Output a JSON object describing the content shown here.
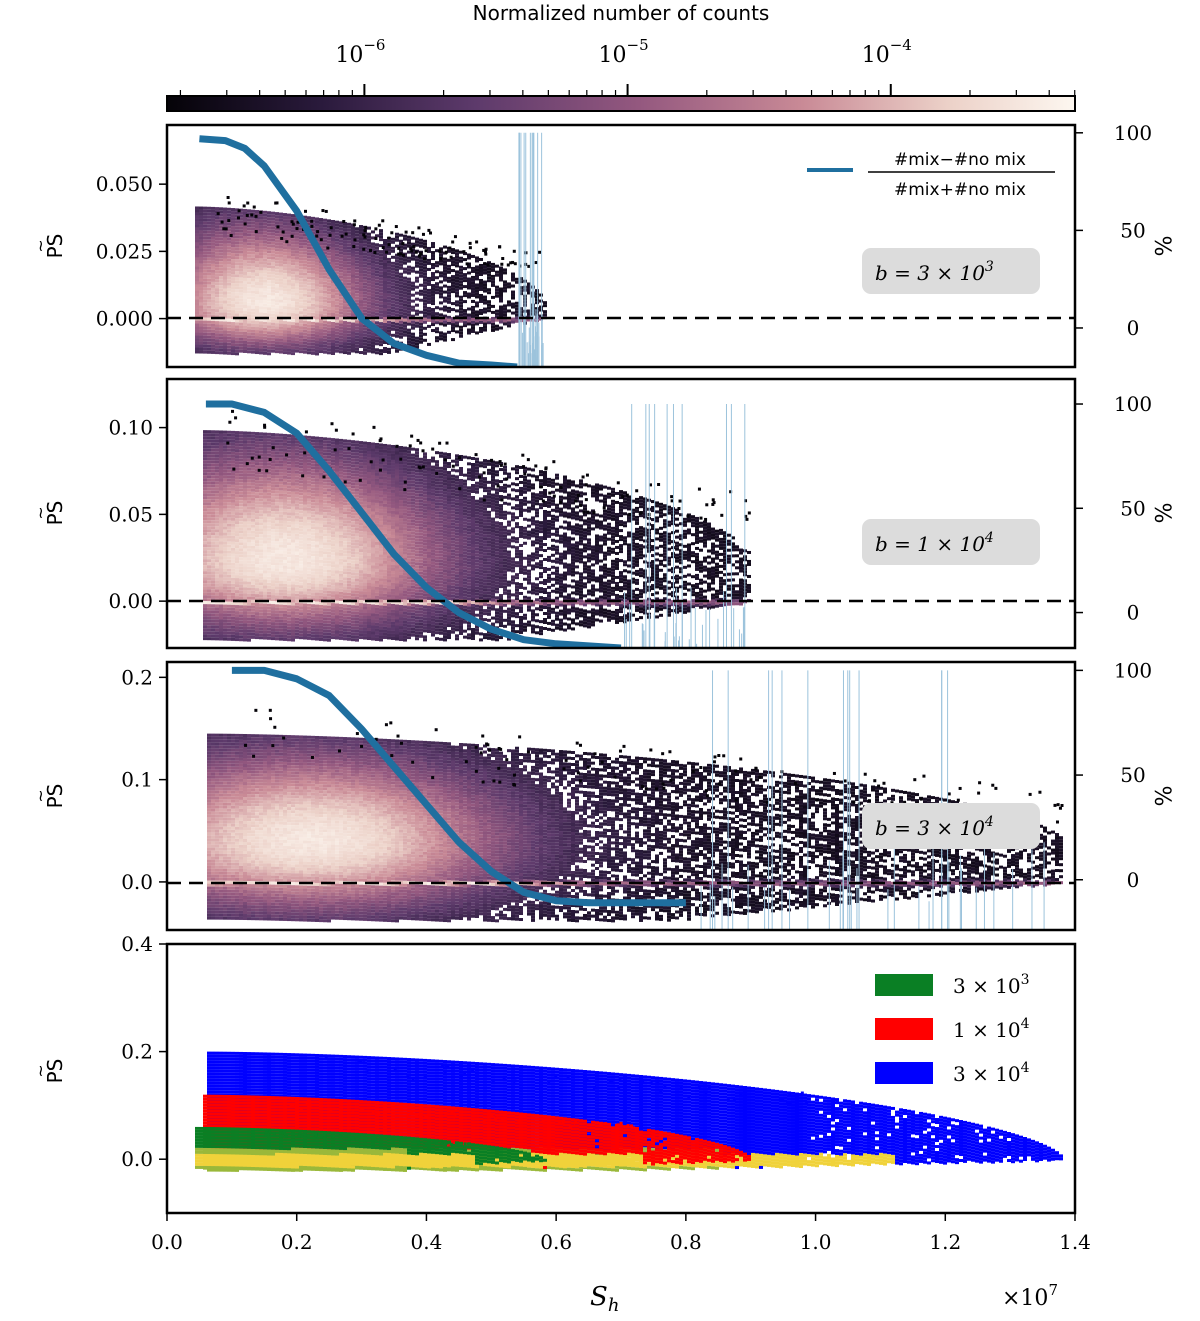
{
  "colorbar": {
    "label": "Normalized number of counts",
    "ticks": [
      {
        "base": "10",
        "exp": "−6",
        "log": -6
      },
      {
        "base": "10",
        "exp": "−5",
        "log": -5
      },
      {
        "base": "10",
        "exp": "−4",
        "log": -4
      }
    ],
    "log_range": [
      -6.75,
      -3.3
    ],
    "colormap": [
      "#050308",
      "#2a1a3c",
      "#5d3a6b",
      "#94587f",
      "#c98a96",
      "#ecd1c8",
      "#fdf7f0"
    ]
  },
  "legend_formula": {
    "num_a": "#mix",
    "num_minus": "−",
    "num_b": "#no mix",
    "den_a": "#mix",
    "den_plus": "+",
    "den_b": "#no mix"
  },
  "ps_label": "PS",
  "ps_tilde": "~",
  "pct_label": "%",
  "chart_data": [
    {
      "type": "heatmap",
      "panel": "b=3e3",
      "annotation": {
        "prefix": "b = 3 × 10",
        "exp": "3"
      },
      "xlim": [
        0,
        14000000
      ],
      "ylim": [
        -0.018,
        0.072
      ],
      "yticks": [
        0.0,
        0.025,
        0.05
      ],
      "yticklabels": [
        "0.000",
        "0.025",
        "0.050"
      ],
      "right_ylim": [
        -20,
        104
      ],
      "right_ticks": [
        0,
        50,
        100
      ],
      "right_ticklabels": [
        "0",
        "50",
        "100"
      ],
      "density": {
        "x_center": 1500000,
        "x_spread": 1300000,
        "y_center": 0.006,
        "y_top": 0.04,
        "x_max": 5800000,
        "peak": 0.003
      },
      "mix_fraction_curve": {
        "x": [
          500000,
          900000,
          1200000,
          1500000,
          2000000,
          2500000,
          3000000,
          3500000,
          4000000,
          4500000,
          5000000,
          5400000
        ],
        "y": [
          97,
          96,
          92,
          83,
          60,
          30,
          5,
          -8,
          -14,
          -18,
          -19,
          -20
        ]
      }
    },
    {
      "type": "heatmap",
      "panel": "b=1e4",
      "annotation": {
        "prefix": "b = 1 × 10",
        "exp": "4"
      },
      "xlim": [
        0,
        14000000
      ],
      "ylim": [
        -0.027,
        0.128
      ],
      "yticks": [
        0.0,
        0.05,
        0.1
      ],
      "yticklabels": [
        "0.00",
        "0.05",
        "0.10"
      ],
      "right_ylim": [
        -17,
        112
      ],
      "right_ticks": [
        0,
        50,
        100
      ],
      "right_ticklabels": [
        "0",
        "50",
        "100"
      ],
      "density": {
        "x_center": 1800000,
        "x_spread": 2000000,
        "y_center": 0.024,
        "y_top": 0.095,
        "x_max": 9000000,
        "peak": 0.003
      },
      "mix_fraction_curve": {
        "x": [
          600000,
          1000000,
          1500000,
          2000000,
          2500000,
          3000000,
          3500000,
          4000000,
          4500000,
          5000000,
          5500000,
          6000000,
          7000000
        ],
        "y": [
          100,
          100,
          96,
          86,
          68,
          48,
          28,
          12,
          0,
          -8,
          -13,
          -15,
          -17
        ]
      }
    },
    {
      "type": "heatmap",
      "panel": "b=3e4",
      "annotation": {
        "prefix": "b = 3 × 10",
        "exp": "4"
      },
      "xlim": [
        0,
        14000000
      ],
      "ylim": [
        -0.047,
        0.215
      ],
      "yticks": [
        0.0,
        0.1,
        0.2
      ],
      "yticklabels": [
        "0.0",
        "0.1",
        "0.2"
      ],
      "right_ylim": [
        -24,
        104
      ],
      "right_ticks": [
        0,
        50,
        100
      ],
      "right_ticklabels": [
        "0",
        "50",
        "100"
      ],
      "density": {
        "x_center": 2200000,
        "x_spread": 2400000,
        "y_center": 0.04,
        "y_top": 0.14,
        "x_max": 13800000,
        "peak": 0.003
      },
      "mix_fraction_curve": {
        "x": [
          1000000,
          1500000,
          2000000,
          2500000,
          3000000,
          3500000,
          4000000,
          4500000,
          5000000,
          5500000,
          6000000,
          6500000,
          7000000,
          8000000
        ],
        "y": [
          100,
          100,
          96,
          88,
          72,
          54,
          36,
          18,
          4,
          -6,
          -10,
          -11,
          -11,
          -11
        ]
      }
    },
    {
      "type": "scatter",
      "panel": "comparison",
      "xlabel": "S",
      "xlabel_sub": "h",
      "x_scale": {
        "base": "×10",
        "exp": "7"
      },
      "xlim": [
        0,
        14000000
      ],
      "ylim": [
        -0.1,
        0.4
      ],
      "xticks": [
        0,
        2000000,
        4000000,
        6000000,
        8000000,
        10000000,
        12000000,
        14000000
      ],
      "xticklabels": [
        "0.0",
        "0.2",
        "0.4",
        "0.6",
        "0.8",
        "1.0",
        "1.2",
        "1.4"
      ],
      "yticks": [
        0.0,
        0.2,
        0.4
      ],
      "yticklabels": [
        "0.0",
        "0.2",
        "0.4"
      ],
      "legend_position": "top-right",
      "series": [
        {
          "name": "3 × 10",
          "exp": "3",
          "color": "#0a7f24",
          "x_max": 5800000,
          "y_top": 0.06,
          "x_center": 1500000
        },
        {
          "name": "1 × 10",
          "exp": "4",
          "color": "#ff0000",
          "x_max": 9000000,
          "y_top": 0.12,
          "x_center": 1800000
        },
        {
          "name": "3 × 10",
          "exp": "4",
          "color": "#0000ff",
          "x_max": 13800000,
          "y_top": 0.2,
          "x_center": 2200000
        }
      ]
    }
  ]
}
